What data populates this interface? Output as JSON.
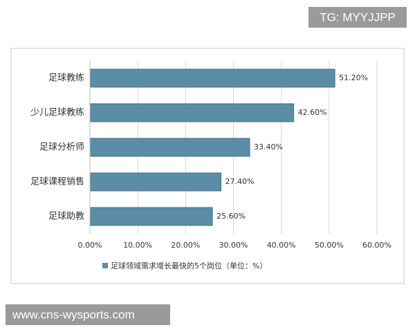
{
  "chart_data": {
    "type": "bar",
    "orientation": "horizontal",
    "categories": [
      "足球教练",
      "少儿足球教练",
      "足球分析师",
      "足球课程销售",
      "足球助教"
    ],
    "values": [
      51.2,
      42.6,
      33.4,
      27.4,
      25.6
    ],
    "value_labels": [
      "51.20%",
      "42.60%",
      "33.40%",
      "27.40%",
      "25.60%"
    ],
    "color": "#5a8ea6",
    "legend": "足球领域需求增长最快的5个岗位（单位：%）",
    "xlim": [
      0,
      60
    ],
    "xticks": [
      {
        "value": 0,
        "label": "0.00%"
      },
      {
        "value": 10,
        "label": "10.00%"
      },
      {
        "value": 20,
        "label": "20.00%"
      },
      {
        "value": 30,
        "label": "30.00%"
      },
      {
        "value": 40,
        "label": "40.00%"
      },
      {
        "value": 50,
        "label": "50.00%"
      },
      {
        "value": 60,
        "label": "60.00%"
      }
    ],
    "grid": true
  },
  "overlays": {
    "top_right": "TG: MYYJJPP",
    "bottom_left": "www.cns-wysports.com"
  }
}
